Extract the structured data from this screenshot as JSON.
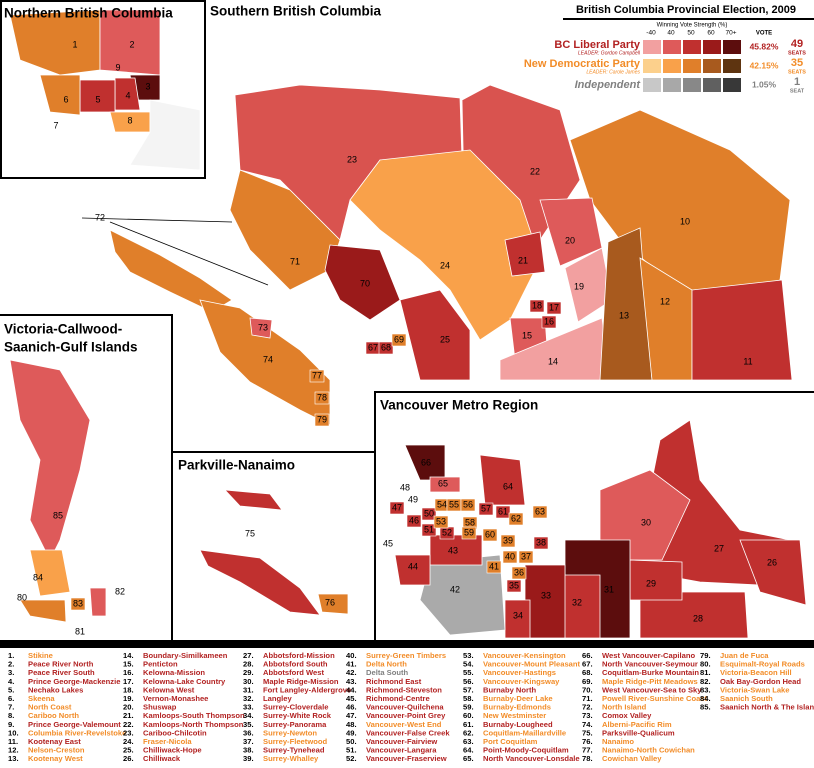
{
  "title": "British Columbia Provincial Election, 2009",
  "panels": [
    "Northern British Columbia",
    "Southern British Columbia",
    [
      "Victoria-Callwood-",
      "Saanich-Gulf Islands"
    ],
    "Parkville-Nanaimo",
    "Vancouver Metro Region"
  ],
  "legend": {
    "strength_label": "Winning Vote Strength (%)",
    "bins": [
      "-40",
      "40",
      "50",
      "60",
      "70+"
    ],
    "vote_header": "VOTE",
    "parties": [
      {
        "name": "BC Liberal Party",
        "leader": "LEADER: Gordon Campbell",
        "vote": "45.82%",
        "seats": 49,
        "seats_label": "SEATS",
        "text_color": "#b22222",
        "colors": [
          "#f2a0a0",
          "#de5a5a",
          "#c0302f",
          "#9a1a1a",
          "#5c0d0d"
        ]
      },
      {
        "name": "New Democratic Party",
        "leader": "LEADER: Carole James",
        "vote": "42.15%",
        "seats": 35,
        "seats_label": "SEATS",
        "text_color": "#f28c28",
        "colors": [
          "#fcd08c",
          "#f9a14a",
          "#e07f2a",
          "#a85a1e",
          "#5e3410"
        ]
      },
      {
        "name": "Independent",
        "vote": "1.05%",
        "seats": 1,
        "seats_label": "SEAT",
        "text_color": "#808080",
        "colors": [
          "#c8c8c8",
          "#a8a8a8",
          "#888888",
          "#606060",
          "#383838"
        ]
      }
    ]
  },
  "districts": [
    {
      "id": 1,
      "label": "1.",
      "name": "Stikine",
      "party": 1
    },
    {
      "id": 2,
      "label": "2.",
      "name": "Peace River North",
      "party": 0
    },
    {
      "id": 3,
      "label": "3.",
      "name": "Peace River South",
      "party": 0
    },
    {
      "id": 4,
      "label": "4.",
      "name": "Prince George-Mackenzie",
      "party": 0
    },
    {
      "id": 5,
      "label": "5.",
      "name": "Nechako Lakes",
      "party": 0
    },
    {
      "id": 6,
      "label": "6.",
      "name": "Skeena",
      "party": 1
    },
    {
      "id": 7,
      "label": "7.",
      "name": "North Coast",
      "party": 1
    },
    {
      "id": 8,
      "label": "8.",
      "name": "Cariboo North",
      "party": 1
    },
    {
      "id": 9,
      "label": "9.",
      "name": "Prince George-Valemount",
      "party": 0
    },
    {
      "id": 10,
      "label": "10.",
      "name": "Columbia River-Revelstoke",
      "party": 1
    },
    {
      "id": 11,
      "label": "11.",
      "name": "Kootenay East",
      "party": 0
    },
    {
      "id": 12,
      "label": "12.",
      "name": "Nelson-Creston",
      "party": 1
    },
    {
      "id": 13,
      "label": "13.",
      "name": "Kootenay West",
      "party": 1
    },
    {
      "id": 14,
      "label": "14.",
      "name": "Boundary-Similkameen",
      "party": 0
    },
    {
      "id": 15,
      "label": "15.",
      "name": "Penticton",
      "party": 0
    },
    {
      "id": 16,
      "label": "16.",
      "name": "Kelowna-Mission",
      "party": 0
    },
    {
      "id": 17,
      "label": "17.",
      "name": "Kelowna-Lake Country",
      "party": 0
    },
    {
      "id": 18,
      "label": "18.",
      "name": "Kelowna West",
      "party": 0
    },
    {
      "id": 19,
      "label": "19.",
      "name": "Vernon-Monashee",
      "party": 0
    },
    {
      "id": 20,
      "label": "20.",
      "name": "Shuswap",
      "party": 0
    },
    {
      "id": 21,
      "label": "21.",
      "name": "Kamloops-South Thompson",
      "party": 0
    },
    {
      "id": 22,
      "label": "22.",
      "name": "Kamloops-North Thompson",
      "party": 0
    },
    {
      "id": 23,
      "label": "23.",
      "name": "Cariboo-Chilcotin",
      "party": 0
    },
    {
      "id": 24,
      "label": "24.",
      "name": "Fraser-Nicola",
      "party": 1
    },
    {
      "id": 25,
      "label": "25.",
      "name": "Chilliwack-Hope",
      "party": 0
    },
    {
      "id": 26,
      "label": "26.",
      "name": "Chilliwack",
      "party": 0
    },
    {
      "id": 27,
      "label": "27.",
      "name": "Abbotsford-Mission",
      "party": 0
    },
    {
      "id": 28,
      "label": "28.",
      "name": "Abbotsford South",
      "party": 0
    },
    {
      "id": 29,
      "label": "29.",
      "name": "Abbotsford West",
      "party": 0
    },
    {
      "id": 30,
      "label": "30.",
      "name": "Maple Ridge-Mission",
      "party": 0
    },
    {
      "id": 31,
      "label": "31.",
      "name": "Fort Langley-Aldergrove",
      "party": 0
    },
    {
      "id": 32,
      "label": "32.",
      "name": "Langley",
      "party": 0
    },
    {
      "id": 33,
      "label": "33.",
      "name": "Surrey-Cloverdale",
      "party": 0
    },
    {
      "id": 34,
      "label": "34.",
      "name": "Surrey-White Rock",
      "party": 0
    },
    {
      "id": 35,
      "label": "35.",
      "name": "Surrey-Panorama",
      "party": 0
    },
    {
      "id": 36,
      "label": "36.",
      "name": "Surrey-Newton",
      "party": 1
    },
    {
      "id": 37,
      "label": "37.",
      "name": "Surrey-Fleetwood",
      "party": 1
    },
    {
      "id": 38,
      "label": "38.",
      "name": "Surrey-Tynehead",
      "party": 0
    },
    {
      "id": 39,
      "label": "39.",
      "name": "Surrey-Whalley",
      "party": 1
    },
    {
      "id": 40,
      "label": "40.",
      "name": "Surrey-Green Timbers",
      "party": 1
    },
    {
      "id": 41,
      "label": "41.",
      "name": "Delta North",
      "party": 1
    },
    {
      "id": 42,
      "label": "42.",
      "name": "Delta South",
      "party": 2
    },
    {
      "id": 43,
      "label": "43.",
      "name": "Richmond East",
      "party": 0
    },
    {
      "id": 44,
      "label": "44.",
      "name": "Richmond-Steveston",
      "party": 0
    },
    {
      "id": 45,
      "label": "45.",
      "name": "Richmond-Centre",
      "party": 0
    },
    {
      "id": 46,
      "label": "46.",
      "name": "Vancouver-Quilchena",
      "party": 0
    },
    {
      "id": 47,
      "label": "47.",
      "name": "Vancouver-Point Grey",
      "party": 0
    },
    {
      "id": 48,
      "label": "48.",
      "name": "Vancouver-West End",
      "party": 1
    },
    {
      "id": 49,
      "label": "49.",
      "name": "Vancouver-False Creek",
      "party": 0
    },
    {
      "id": 50,
      "label": "50.",
      "name": "Vancouver-Fairview",
      "party": 0
    },
    {
      "id": 51,
      "label": "51.",
      "name": "Vancouver-Langara",
      "party": 0
    },
    {
      "id": 52,
      "label": "52.",
      "name": "Vancouver-Fraserview",
      "party": 0
    },
    {
      "id": 53,
      "label": "53.",
      "name": "Vancouver-Kensington",
      "party": 1
    },
    {
      "id": 54,
      "label": "54.",
      "name": "Vancouver-Mount Pleasant",
      "party": 1
    },
    {
      "id": 55,
      "label": "55.",
      "name": "Vancouver-Hastings",
      "party": 1
    },
    {
      "id": 56,
      "label": "56.",
      "name": "Vancouver-Kingsway",
      "party": 1
    },
    {
      "id": 57,
      "label": "57.",
      "name": "Burnaby North",
      "party": 0
    },
    {
      "id": 58,
      "label": "58.",
      "name": "Burnaby-Deer Lake",
      "party": 1
    },
    {
      "id": 59,
      "label": "59.",
      "name": "Burnaby-Edmonds",
      "party": 1
    },
    {
      "id": 60,
      "label": "60.",
      "name": "New Westminster",
      "party": 1
    },
    {
      "id": 61,
      "label": "61.",
      "name": "Burnaby-Lougheed",
      "party": 0
    },
    {
      "id": 62,
      "label": "62.",
      "name": "Coquitlam-Maillardville",
      "party": 1
    },
    {
      "id": 63,
      "label": "63.",
      "name": "Port Coquitlam",
      "party": 1
    },
    {
      "id": 64,
      "label": "64.",
      "name": "Point-Moody-Coquitlam",
      "party": 0
    },
    {
      "id": 65,
      "label": "65.",
      "name": "North Vancouver-Lonsdale",
      "party": 0
    },
    {
      "id": 66,
      "label": "66.",
      "name": "West Vancouver-Capilano",
      "party": 0
    },
    {
      "id": 67,
      "label": "67.",
      "name": "North Vancouver-Seymour",
      "party": 0
    },
    {
      "id": 68,
      "label": "68.",
      "name": "Coquitlam-Burke Mountain",
      "party": 0
    },
    {
      "id": 69,
      "label": "69.",
      "name": "Maple Ridge-Pitt Meadows",
      "party": 1
    },
    {
      "id": 70,
      "label": "70.",
      "name": "West Vancouver-Sea to Sky",
      "party": 0
    },
    {
      "id": 71,
      "label": "71.",
      "name": "Powell River-Sunshine Coast",
      "party": 1
    },
    {
      "id": 72,
      "label": "72.",
      "name": "North Island",
      "party": 1
    },
    {
      "id": 73,
      "label": "73.",
      "name": "Comox Valley",
      "party": 0
    },
    {
      "id": 74,
      "label": "74.",
      "name": "Alberni-Pacific Rim",
      "party": 1
    },
    {
      "id": 75,
      "label": "75.",
      "name": "Parksville-Qualicum",
      "party": 0
    },
    {
      "id": 76,
      "label": "76.",
      "name": "Nanaimo",
      "party": 1
    },
    {
      "id": 77,
      "label": "77.",
      "name": "Nanaimo-North Cowichan",
      "party": 1
    },
    {
      "id": 78,
      "label": "78.",
      "name": "Cowichan Valley",
      "party": 1
    },
    {
      "id": 79,
      "label": "79.",
      "name": "Juan de Fuca",
      "party": 1
    },
    {
      "id": 80,
      "label": "80.",
      "name": "Esquimalt-Royal Roads",
      "party": 1
    },
    {
      "id": 81,
      "label": "81.",
      "name": "Victoria-Beacon Hill",
      "party": 1
    },
    {
      "id": 82,
      "label": "82.",
      "name": "Oak Bay-Gordon Head",
      "party": 0
    },
    {
      "id": 83,
      "label": "83.",
      "name": "Victoria-Swan Lake",
      "party": 1
    },
    {
      "id": 84,
      "label": "84.",
      "name": "Saanich South",
      "party": 1
    },
    {
      "id": 85,
      "label": "85.",
      "name": "Saanich North & The Islands",
      "party": 0
    }
  ]
}
